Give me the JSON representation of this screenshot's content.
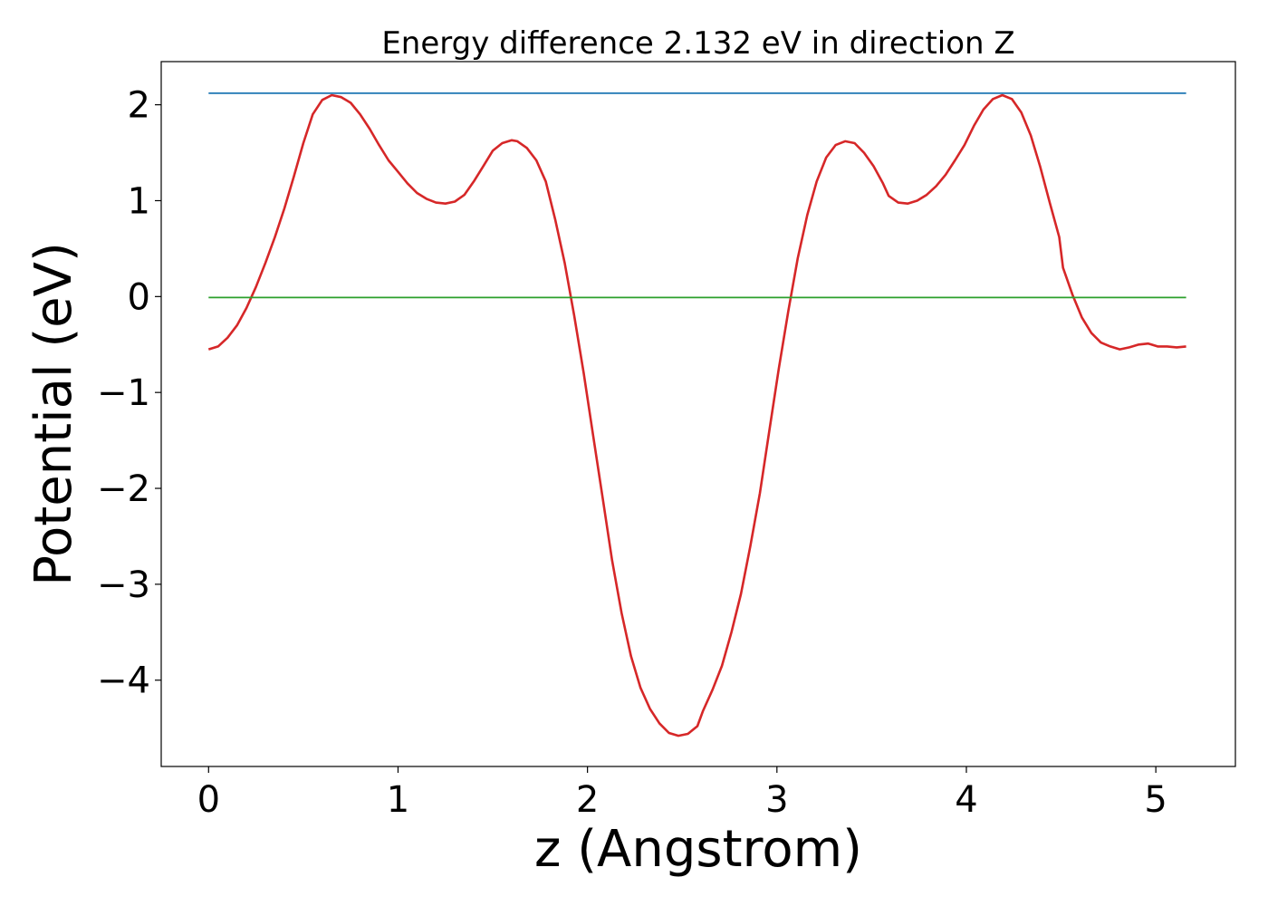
{
  "chart_data": {
    "type": "line",
    "title": "Energy difference 2.132 eV in direction Z",
    "xlabel": "z (Angstrom)",
    "ylabel": "Potential (eV)",
    "xlim": [
      -0.25,
      5.42
    ],
    "ylim": [
      -4.9,
      2.45
    ],
    "xticks": [
      0,
      1,
      2,
      3,
      4,
      5
    ],
    "xtick_labels": [
      "0",
      "1",
      "2",
      "3",
      "4",
      "5"
    ],
    "yticks": [
      -4,
      -3,
      -2,
      -1,
      0,
      1,
      2
    ],
    "ytick_labels": [
      "−4",
      "−3",
      "−2",
      "−1",
      "0",
      "1",
      "2"
    ],
    "grid": false,
    "series": [
      {
        "color": "#d62728",
        "x": [
          0,
          0.05,
          0.1,
          0.15,
          0.2,
          0.25,
          0.3,
          0.35,
          0.4,
          0.45,
          0.5,
          0.55,
          0.6,
          0.65,
          0.7,
          0.75,
          0.8,
          0.85,
          0.9,
          0.95,
          1.0,
          1.05,
          1.1,
          1.15,
          1.2,
          1.25,
          1.3,
          1.35,
          1.4,
          1.45,
          1.5,
          1.55,
          1.6,
          1.63,
          1.68,
          1.73,
          1.78,
          1.83,
          1.88,
          1.93,
          1.98,
          2.03,
          2.08,
          2.13,
          2.18,
          2.23,
          2.28,
          2.33,
          2.38,
          2.43,
          2.48,
          2.53,
          2.58,
          2.61,
          2.66,
          2.71,
          2.76,
          2.81,
          2.86,
          2.91,
          2.96,
          3.01,
          3.06,
          3.11,
          3.16,
          3.21,
          3.26,
          3.31,
          3.36,
          3.41,
          3.46,
          3.51,
          3.56,
          3.59,
          3.64,
          3.69,
          3.74,
          3.79,
          3.84,
          3.89,
          3.94,
          3.99,
          4.04,
          4.09,
          4.14,
          4.19,
          4.24,
          4.29,
          4.34,
          4.39,
          4.44,
          4.49,
          4.51,
          4.56,
          4.61,
          4.66,
          4.71,
          4.76,
          4.81,
          4.86,
          4.91,
          4.96,
          5.01,
          5.06,
          5.11,
          5.16
        ],
        "y": [
          -0.55,
          -0.52,
          -0.43,
          -0.3,
          -0.12,
          0.1,
          0.35,
          0.62,
          0.92,
          1.25,
          1.6,
          1.9,
          2.05,
          2.1,
          2.08,
          2.02,
          1.9,
          1.75,
          1.58,
          1.42,
          1.3,
          1.18,
          1.08,
          1.02,
          0.98,
          0.97,
          0.99,
          1.06,
          1.2,
          1.36,
          1.52,
          1.6,
          1.63,
          1.62,
          1.55,
          1.42,
          1.2,
          0.8,
          0.35,
          -0.2,
          -0.8,
          -1.45,
          -2.1,
          -2.75,
          -3.3,
          -3.75,
          -4.08,
          -4.3,
          -4.45,
          -4.55,
          -4.58,
          -4.56,
          -4.48,
          -4.32,
          -4.1,
          -3.85,
          -3.5,
          -3.1,
          -2.6,
          -2.05,
          -1.4,
          -0.75,
          -0.15,
          0.4,
          0.85,
          1.2,
          1.45,
          1.58,
          1.62,
          1.6,
          1.5,
          1.36,
          1.18,
          1.05,
          0.98,
          0.97,
          1.0,
          1.06,
          1.15,
          1.27,
          1.42,
          1.58,
          1.78,
          1.95,
          2.06,
          2.1,
          2.06,
          1.92,
          1.68,
          1.35,
          0.98,
          0.62,
          0.3,
          0.02,
          -0.22,
          -0.38,
          -0.48,
          -0.52,
          -0.55,
          -0.53,
          -0.5,
          -0.49,
          -0.52,
          -0.52,
          -0.53,
          -0.52
        ]
      },
      {
        "color": "#1f77b4",
        "x": [
          0,
          5.16
        ],
        "y": [
          2.12,
          2.12
        ]
      },
      {
        "color": "#2ca02c",
        "x": [
          0,
          5.16
        ],
        "y": [
          -0.01,
          -0.01
        ]
      }
    ]
  }
}
